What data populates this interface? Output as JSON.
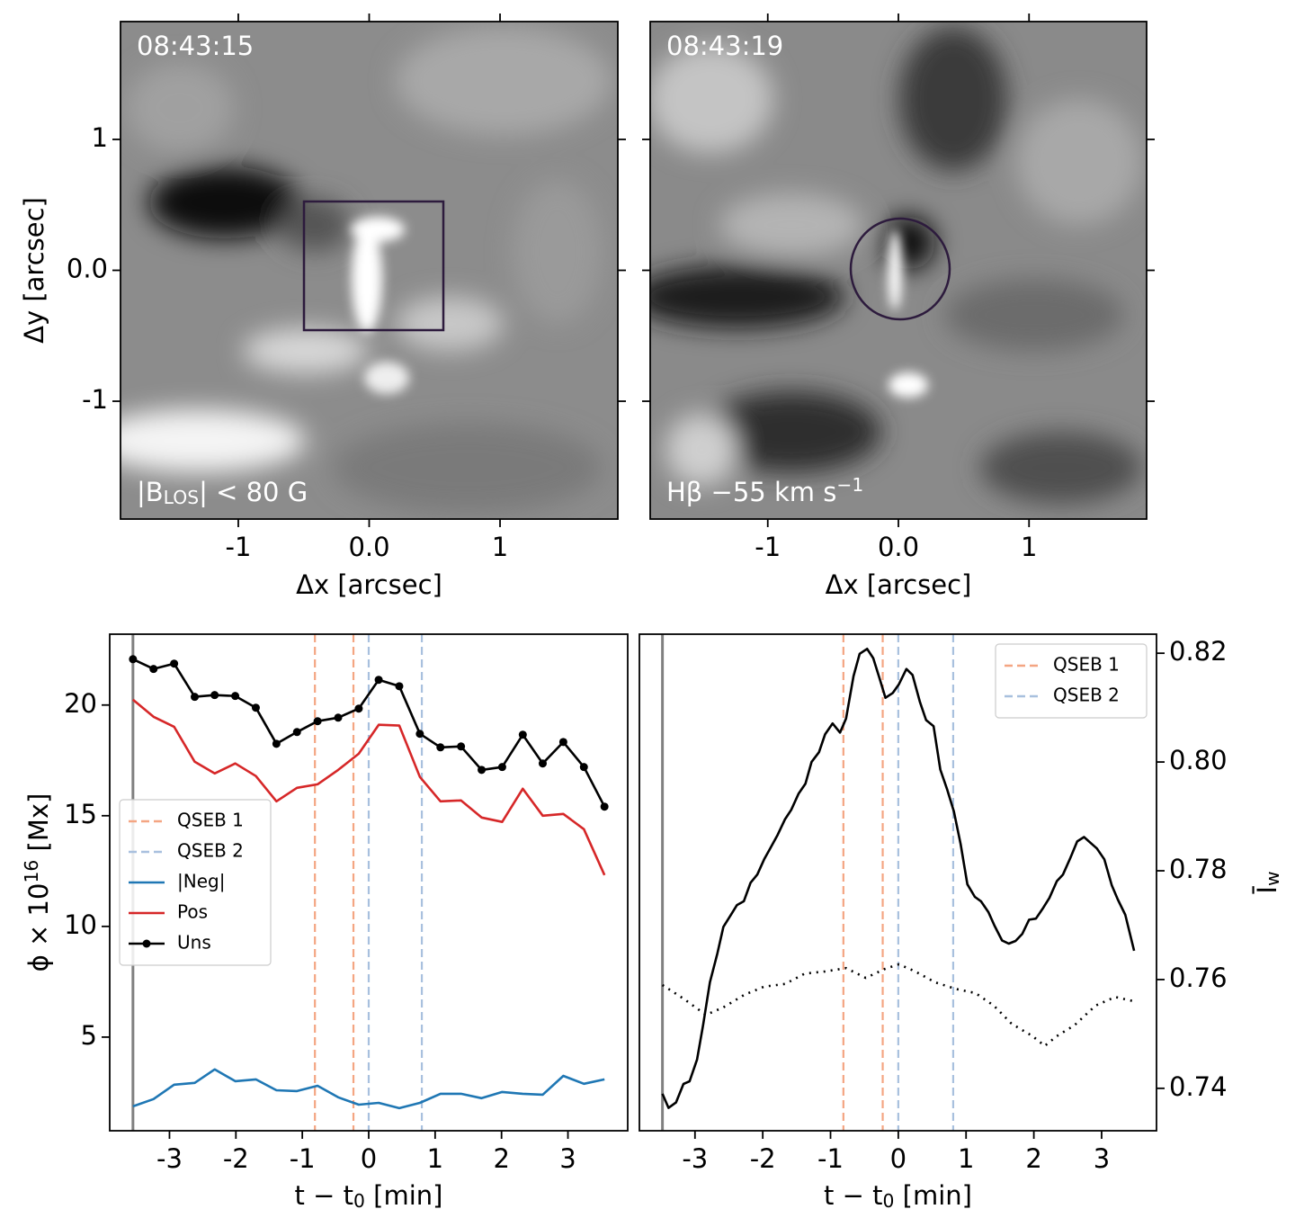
{
  "chart_data": [
    {
      "type": "image",
      "time": "08:43:15",
      "caption": {
        "text": [
          "|B",
          "LOS",
          "| < 80 G"
        ],
        "script": "sub"
      },
      "xlabel": "Δx [arcsec]",
      "ylabel": "Δy [arcsec]",
      "xlim": [
        -1.9,
        1.9
      ],
      "ylim": [
        -1.9,
        1.9
      ],
      "xticks": [
        -1,
        {
          "value": 0,
          "label": "0.0"
        },
        1
      ],
      "yticks": [
        -1,
        {
          "value": 0,
          "label": "0.0"
        },
        1
      ],
      "ytick_labels": true,
      "yaxis": "left",
      "ticks_all_sides": true
    },
    {
      "type": "image",
      "time": "08:43:19",
      "caption": {
        "text": [
          "Hβ −55 km s",
          "−1"
        ],
        "script": "sup"
      },
      "xlabel": "Δx [arcsec]",
      "xlim": [
        -1.9,
        1.9
      ],
      "ylim": [
        -1.9,
        1.9
      ],
      "xticks": [
        -1,
        {
          "value": 0,
          "label": "0.0"
        },
        1
      ],
      "yticks": [
        -1,
        0,
        1
      ],
      "ytick_labels": false,
      "yaxis": "left",
      "ticks_all_sides": true
    },
    {
      "type": "line",
      "xlabel": {
        "text": [
          "t − t",
          "0",
          " [min]"
        ],
        "script": "sub"
      },
      "ylabel": {
        "text": [
          "ϕ × 10",
          "16",
          " [Mx]"
        ],
        "script": "sup"
      },
      "xlim": [
        -3.9,
        3.9
      ],
      "ylim": [
        0.77,
        23.2
      ],
      "xticks": [
        -3,
        -2,
        -1,
        0,
        1,
        2,
        3
      ],
      "yticks": [
        5,
        10,
        15,
        20
      ],
      "ytick_labels": true,
      "yaxis": "left",
      "ticks_all_sides": false,
      "legend": "center left",
      "vlines": [
        {
          "color": "#808080",
          "style": "solid",
          "x": [
            -3.55
          ]
        },
        {
          "name": "QSEB 1",
          "color": "#f4a582",
          "style": "dashed",
          "x": [
            -0.81,
            -0.23
          ]
        },
        {
          "name": "QSEB 2",
          "color": "#a8c0de",
          "style": "dashed",
          "x": [
            0,
            0.8
          ]
        }
      ],
      "x": [
        -3.55,
        -3.24,
        -2.93,
        -2.62,
        -2.32,
        -2.01,
        -1.7,
        -1.39,
        -1.08,
        -0.77,
        -0.46,
        -0.15,
        0.15,
        0.46,
        0.77,
        1.08,
        1.39,
        1.7,
        2.01,
        2.32,
        2.62,
        2.93,
        3.24,
        3.55
      ],
      "series": [
        {
          "name": "|Neg|",
          "color": "#1f77b4",
          "style": "solid",
          "marker": false,
          "values": [
            1.87,
            2.2,
            2.85,
            2.93,
            3.54,
            3.01,
            3.09,
            2.6,
            2.56,
            2.8,
            2.28,
            1.95,
            2.03,
            1.79,
            2.03,
            2.44,
            2.44,
            2.24,
            2.52,
            2.44,
            2.4,
            3.25,
            2.89,
            3.09
          ]
        },
        {
          "name": "Pos",
          "color": "#d62728",
          "style": "solid",
          "marker": false,
          "values": [
            20.24,
            19.47,
            19.02,
            17.44,
            16.91,
            17.36,
            16.79,
            15.65,
            16.26,
            16.42,
            17.07,
            17.8,
            19.11,
            19.07,
            16.75,
            15.65,
            15.69,
            14.92,
            14.72,
            16.22,
            15.0,
            15.08,
            14.39,
            12.32
          ]
        },
        {
          "name": "Uns",
          "color": "#000000",
          "style": "solid",
          "marker": true,
          "values": [
            22.07,
            21.63,
            21.87,
            20.37,
            20.45,
            20.41,
            19.88,
            18.25,
            18.78,
            19.27,
            19.43,
            19.84,
            21.14,
            20.85,
            18.7,
            18.09,
            18.13,
            17.07,
            17.2,
            18.66,
            17.36,
            18.33,
            17.2,
            15.41
          ]
        }
      ]
    },
    {
      "type": "line",
      "xlabel": {
        "text": [
          "t − t",
          "0",
          " [min]"
        ],
        "script": "sub"
      },
      "ylabel": {
        "text": [
          "Ī",
          "w"
        ],
        "script": "sub"
      },
      "xlim": [
        -3.82,
        3.81
      ],
      "ylim": [
        0.7322,
        0.8235
      ],
      "xticks": [
        -3,
        -2,
        -1,
        0,
        1,
        2,
        3
      ],
      "yticks": [
        0.74,
        0.76,
        0.78,
        {
          "value": 0.8,
          "label": "0.80"
        },
        0.82
      ],
      "ytick_labels": true,
      "yaxis": "right",
      "ticks_all_sides": false,
      "legend": "upper right",
      "vlines": [
        {
          "color": "#808080",
          "style": "solid",
          "x": [
            -3.48
          ]
        },
        {
          "name": "QSEB 1",
          "color": "#f4a582",
          "style": "dashed",
          "x": [
            -0.81,
            -0.23
          ]
        },
        {
          "name": "QSEB 2",
          "color": "#a8c0de",
          "style": "dashed",
          "x": [
            0,
            0.81
          ]
        }
      ],
      "series": [
        {
          "color": "#000000",
          "style": "solid",
          "marker": false,
          "x": [
            -3.48,
            -3.39,
            -3.28,
            -3.17,
            -3.08,
            -2.97,
            -2.88,
            -2.78,
            -2.67,
            -2.58,
            -2.48,
            -2.38,
            -2.28,
            -2.18,
            -2.08,
            -1.98,
            -1.89,
            -1.78,
            -1.67,
            -1.58,
            -1.47,
            -1.37,
            -1.28,
            -1.17,
            -1.08,
            -0.97,
            -0.86,
            -0.77,
            -0.66,
            -0.57,
            -0.46,
            -0.37,
            -0.28,
            -0.19,
            -0.08,
            0.01,
            0.12,
            0.21,
            0.32,
            0.41,
            0.52,
            0.62,
            0.72,
            0.82,
            0.92,
            1.02,
            1.13,
            1.22,
            1.33,
            1.42,
            1.53,
            1.63,
            1.73,
            1.83,
            1.93,
            2.03,
            2.14,
            2.23,
            2.34,
            2.43,
            2.54,
            2.64,
            2.74,
            2.84,
            2.93,
            3.04,
            3.15,
            3.24,
            3.35,
            3.48
          ],
          "values": [
            0.739,
            0.7364,
            0.7374,
            0.7408,
            0.7413,
            0.7453,
            0.7516,
            0.7595,
            0.7648,
            0.7697,
            0.7717,
            0.7737,
            0.7744,
            0.7778,
            0.7793,
            0.7821,
            0.7841,
            0.7866,
            0.7895,
            0.7912,
            0.7942,
            0.796,
            0.8,
            0.8018,
            0.8051,
            0.8071,
            0.8054,
            0.808,
            0.8158,
            0.8199,
            0.8208,
            0.8191,
            0.8155,
            0.8118,
            0.8127,
            0.8143,
            0.8171,
            0.816,
            0.811,
            0.8077,
            0.8066,
            0.7986,
            0.795,
            0.7909,
            0.7849,
            0.7775,
            0.7752,
            0.7744,
            0.7724,
            0.7699,
            0.7672,
            0.7666,
            0.7671,
            0.7684,
            0.771,
            0.7712,
            0.7732,
            0.775,
            0.7781,
            0.7793,
            0.7824,
            0.7854,
            0.7862,
            0.7851,
            0.7841,
            0.7821,
            0.7773,
            0.7747,
            0.7719,
            0.7653
          ]
        },
        {
          "color": "#000000",
          "style": "dotted",
          "marker": false,
          "x": [
            -3.48,
            -3.17,
            -2.84,
            -2.58,
            -2.27,
            -1.98,
            -1.67,
            -1.38,
            -1.08,
            -0.77,
            -0.48,
            -0.19,
            0.01,
            0.25,
            0.54,
            0.84,
            1.14,
            1.41,
            1.67,
            1.98,
            2.16,
            2.34,
            2.6,
            2.91,
            3.2,
            3.48
          ],
          "values": [
            0.759,
            0.7565,
            0.7535,
            0.7549,
            0.7572,
            0.7587,
            0.7592,
            0.7611,
            0.7615,
            0.7621,
            0.7603,
            0.762,
            0.7628,
            0.7615,
            0.7595,
            0.7583,
            0.7575,
            0.7552,
            0.7519,
            0.7496,
            0.7478,
            0.7496,
            0.7516,
            0.7552,
            0.7568,
            0.756
          ]
        }
      ]
    }
  ]
}
